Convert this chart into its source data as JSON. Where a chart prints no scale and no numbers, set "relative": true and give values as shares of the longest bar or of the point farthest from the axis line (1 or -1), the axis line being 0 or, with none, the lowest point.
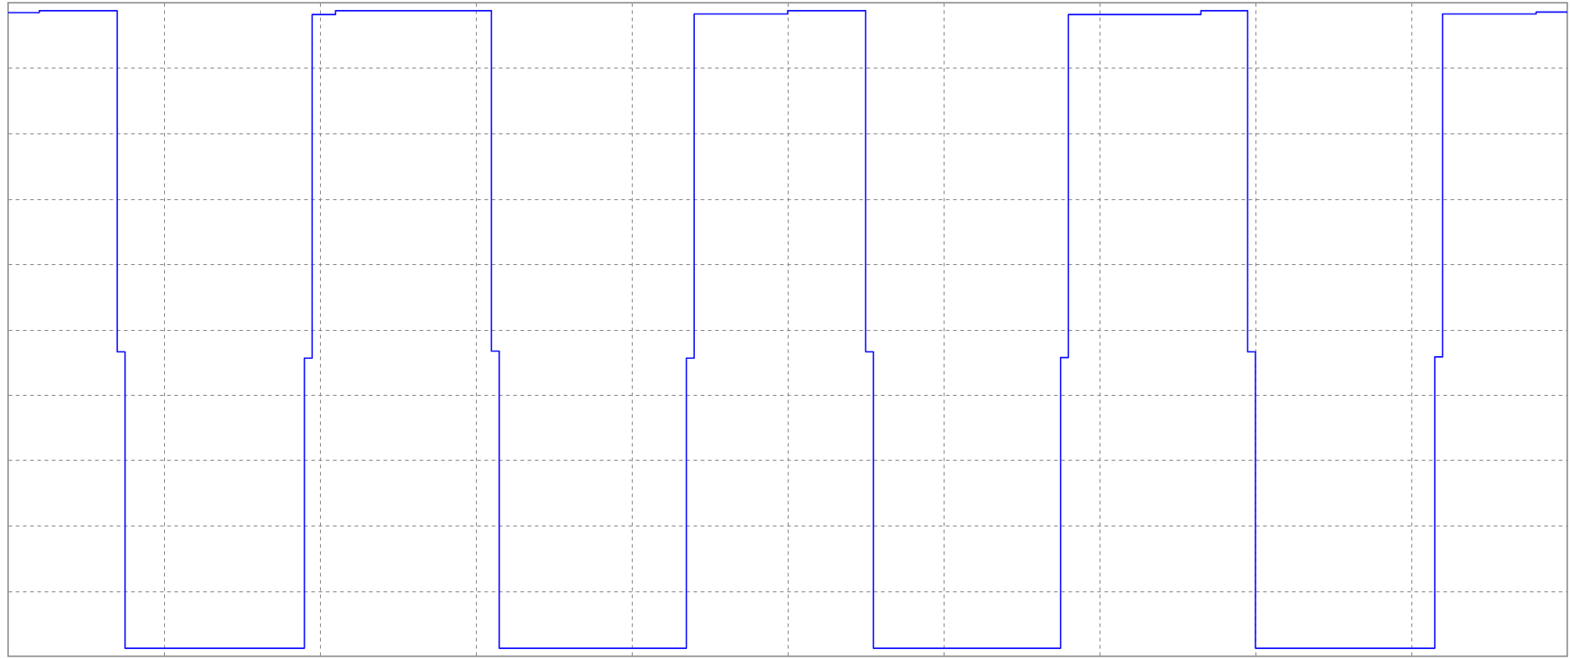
{
  "chart_data": {
    "type": "step",
    "relative": true,
    "grid": true,
    "categories": [
      null,
      null,
      null,
      null,
      null,
      null,
      null,
      null,
      null,
      null,
      null,
      null,
      null,
      null,
      null,
      null,
      null,
      null,
      null,
      null,
      null,
      null,
      null,
      null,
      null,
      null,
      null,
      null,
      null,
      null,
      null,
      null,
      null,
      null,
      null,
      null,
      null,
      null,
      null,
      null,
      null,
      null,
      null,
      null,
      null,
      null,
      null,
      null,
      null,
      null,
      null,
      null,
      null,
      null,
      null,
      null,
      null,
      null,
      null,
      null,
      null,
      null,
      null,
      null,
      null,
      null,
      null,
      null,
      null,
      null,
      null,
      null,
      null,
      null,
      null,
      null,
      null,
      null,
      null,
      null,
      null,
      null,
      null,
      null,
      null,
      null,
      null,
      null,
      null,
      null,
      null,
      null,
      null,
      null,
      null,
      null,
      null,
      null,
      null,
      null,
      null,
      null,
      null,
      null,
      null,
      null,
      null,
      null,
      null,
      null,
      null,
      null,
      null,
      null,
      null,
      null,
      null,
      null,
      null,
      null,
      null,
      null,
      null,
      null,
      null,
      null,
      null,
      null,
      null,
      null,
      null,
      null,
      null,
      null,
      null,
      null,
      null,
      null,
      null,
      null,
      null,
      null,
      null,
      null,
      null,
      null,
      null,
      null,
      null,
      null,
      null,
      null,
      null,
      null,
      null,
      null,
      null,
      null,
      null,
      null,
      null,
      null,
      null,
      null,
      null,
      null,
      null,
      null,
      null,
      null,
      null,
      null,
      null,
      null,
      null,
      null,
      null,
      null,
      null,
      null,
      null,
      null,
      null,
      null,
      null,
      null,
      null,
      null,
      null,
      null,
      null,
      null,
      null,
      null,
      null,
      null,
      null,
      null,
      null,
      null,
      null
    ],
    "series": [
      {
        "color": "#1414ff",
        "values": [
          0.997,
          0.997,
          0.997,
          0.997,
          1,
          1,
          1,
          1,
          1,
          1,
          1,
          1,
          1,
          1,
          0.465,
          0,
          0,
          0,
          0,
          0,
          0,
          0,
          0,
          0,
          0,
          0,
          0,
          0,
          0,
          0,
          0,
          0,
          0,
          0,
          0,
          0,
          0,
          0,
          0.455,
          0.994,
          0.994,
          0.994,
          1,
          1,
          1,
          1,
          1,
          1,
          1,
          1,
          1,
          1,
          1,
          1,
          1,
          1,
          1,
          1,
          1,
          1,
          1,
          1,
          0.466,
          0,
          0,
          0,
          0,
          0,
          0,
          0,
          0,
          0,
          0,
          0,
          0,
          0,
          0,
          0,
          0,
          0,
          0,
          0,
          0,
          0,
          0,
          0,
          0,
          0.455,
          0.995,
          0.995,
          0.995,
          0.995,
          0.995,
          0.995,
          0.995,
          0.995,
          0.995,
          0.995,
          0.995,
          0.995,
          1,
          1,
          1,
          1,
          1,
          1,
          1,
          1,
          1,
          1,
          0.465,
          0,
          0,
          0,
          0,
          0,
          0,
          0,
          0,
          0,
          0,
          0,
          0,
          0,
          0,
          0,
          0,
          0,
          0,
          0,
          0,
          0,
          0,
          0,
          0,
          0.456,
          0.994,
          0.994,
          0.994,
          0.994,
          0.994,
          0.994,
          0.994,
          0.994,
          0.994,
          0.994,
          0.994,
          0.994,
          0.994,
          0.994,
          0.994,
          0.994,
          0.994,
          1,
          1,
          1,
          1,
          1,
          1,
          0.465,
          0,
          0,
          0,
          0,
          0,
          0,
          0,
          0,
          0,
          0,
          0,
          0,
          0,
          0,
          0,
          0,
          0,
          0,
          0,
          0,
          0,
          0,
          0,
          0.457,
          0.995,
          0.995,
          0.995,
          0.995,
          0.995,
          0.995,
          0.995,
          0.995,
          0.995,
          0.995,
          0.995,
          0.995,
          0.998,
          0.998,
          0.998,
          0.998,
          0.998
        ]
      }
    ]
  }
}
